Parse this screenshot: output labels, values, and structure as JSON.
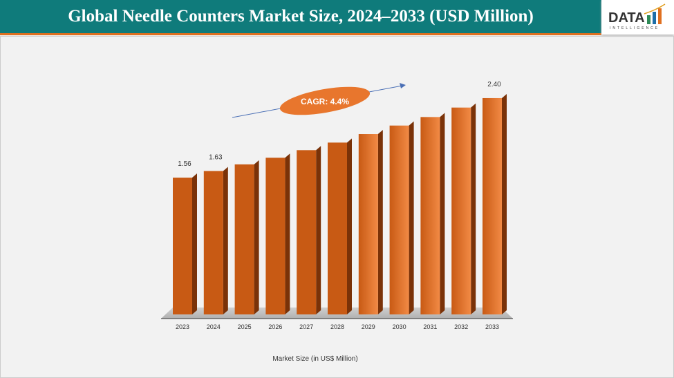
{
  "header": {
    "title": "Global Needle Counters Market Size, 2024–2033 (USD Million)"
  },
  "logo": {
    "text": "DATA",
    "subtext": "INTELLIGENCE"
  },
  "chart_data": {
    "type": "bar",
    "title": "Global Needle Counters Market Size, 2024–2033 (USD Million)",
    "xlabel": "Market Size (in US$ Million)",
    "categories": [
      "2023",
      "2024",
      "2025",
      "2026",
      "2027",
      "2028",
      "2029",
      "2030",
      "2031",
      "2032",
      "2033"
    ],
    "values": [
      1.56,
      1.63,
      1.7,
      1.77,
      1.85,
      1.93,
      2.02,
      2.11,
      2.2,
      2.3,
      2.4
    ],
    "data_labels": {
      "0": "1.56",
      "1": "1.63",
      "10": "2.40"
    },
    "annotation": "CAGR: 4.4%",
    "grid": false,
    "colors": {
      "bar": "#c85a14",
      "bar_light": "#f28a45",
      "side": "#7a3208",
      "header": "#0f7b7b",
      "accent": "#e07020",
      "callout": "#e8762d"
    }
  }
}
